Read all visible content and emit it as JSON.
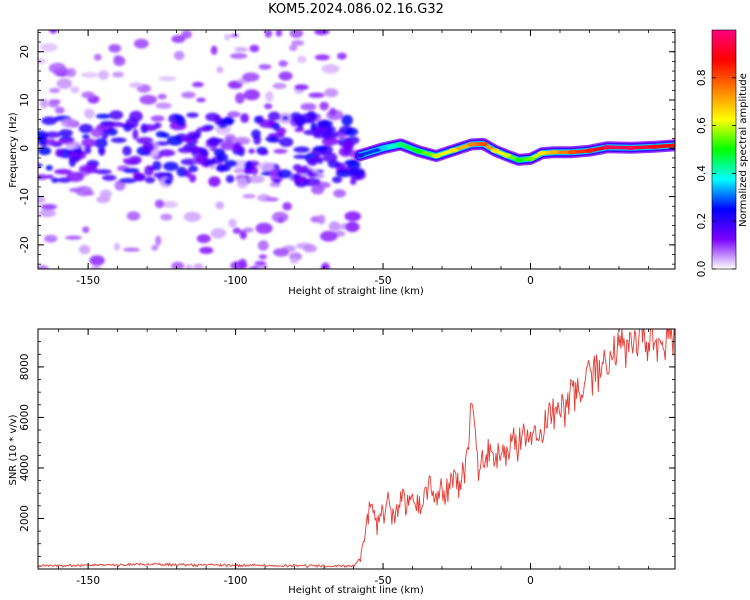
{
  "title": "KOM5.2024.086.02.16.G32",
  "chart_data": [
    {
      "type": "heatmap",
      "title": "KOM5.2024.086.02.16.G32",
      "xlabel": "Height of straight line (km)",
      "ylabel": "Frequency (Hz)",
      "xlim": [
        -167,
        49
      ],
      "ylim": [
        -25,
        24.5
      ],
      "x_ticks": [
        -150,
        -100,
        -50,
        0
      ],
      "y_ticks": [
        -20,
        -10,
        0,
        10,
        20
      ],
      "colorbar": {
        "label": "Normalized spectral amplitude",
        "range": [
          0.0,
          1.0
        ],
        "ticks": [
          0.0,
          0.2,
          0.4,
          0.6,
          0.8
        ],
        "colors": [
          "#ffffff",
          "#7a00ff",
          "#0000ff",
          "#00ffff",
          "#00ff00",
          "#ffff00",
          "#ff7f00",
          "#ff0000",
          "#ff007f"
        ]
      },
      "ridge": {
        "x": [
          -58,
          -50,
          -44,
          -38,
          -32,
          -26,
          -20,
          -16,
          -12,
          -8,
          -4,
          0,
          4,
          8,
          14,
          20,
          26,
          34,
          42,
          49
        ],
        "y": [
          -1.5,
          0,
          0.8,
          -0.6,
          -1.6,
          -0.4,
          0.8,
          0.9,
          -0.5,
          -1.5,
          -2.4,
          -2.2,
          -1.0,
          -0.8,
          -0.8,
          -0.5,
          0.2,
          0.1,
          0.3,
          0.6
        ],
        "amplitude": [
          0.2,
          0.35,
          0.45,
          0.5,
          0.6,
          0.65,
          0.75,
          0.8,
          0.65,
          0.6,
          0.5,
          0.55,
          0.65,
          0.7,
          0.8,
          0.85,
          0.95,
          0.95,
          0.9,
          0.85
        ]
      },
      "noise_region": {
        "x_range": [
          -167,
          -58
        ],
        "y_range": [
          -25,
          24.5
        ],
        "peak_amplitude": 0.25
      }
    },
    {
      "type": "line",
      "xlabel": "Height of straight line (km)",
      "ylabel": "SNR (10 * v/v)",
      "xlim": [
        -167,
        49
      ],
      "ylim": [
        0,
        9500
      ],
      "x_ticks": [
        -150,
        -100,
        -50,
        0
      ],
      "y_ticks": [
        2000,
        4000,
        6000,
        8000
      ],
      "color": "#e53a33",
      "series": [
        {
          "x": [
            -167,
            -150,
            -130,
            -110,
            -90,
            -70,
            -60,
            -58,
            -56,
            -54,
            -52,
            -50,
            -48,
            -46,
            -44,
            -42,
            -40,
            -38,
            -36,
            -34,
            -32,
            -30,
            -28,
            -26,
            -24,
            -22,
            -20,
            -18,
            -16,
            -14,
            -12,
            -10,
            -8,
            -6,
            -4,
            -2,
            0,
            2,
            4,
            6,
            8,
            10,
            12,
            14,
            16,
            18,
            20,
            22,
            24,
            26,
            28,
            30,
            32,
            34,
            36,
            38,
            40,
            42,
            44,
            46,
            49
          ],
          "y": [
            120,
            140,
            180,
            150,
            130,
            120,
            130,
            400,
            1500,
            2800,
            1600,
            2200,
            2600,
            1900,
            3000,
            2500,
            3200,
            2300,
            2800,
            3500,
            2700,
            3300,
            3000,
            3900,
            3200,
            4100,
            6500,
            4300,
            4000,
            4600,
            4200,
            4700,
            4400,
            5200,
            4800,
            5300,
            5000,
            5600,
            5400,
            6200,
            5800,
            6500,
            6300,
            6900,
            7100,
            7400,
            7600,
            7700,
            7900,
            8200,
            8500,
            8700,
            8800,
            8900,
            9000,
            9000,
            9050,
            9000,
            9100,
            9150,
            9200
          ]
        }
      ]
    }
  ]
}
